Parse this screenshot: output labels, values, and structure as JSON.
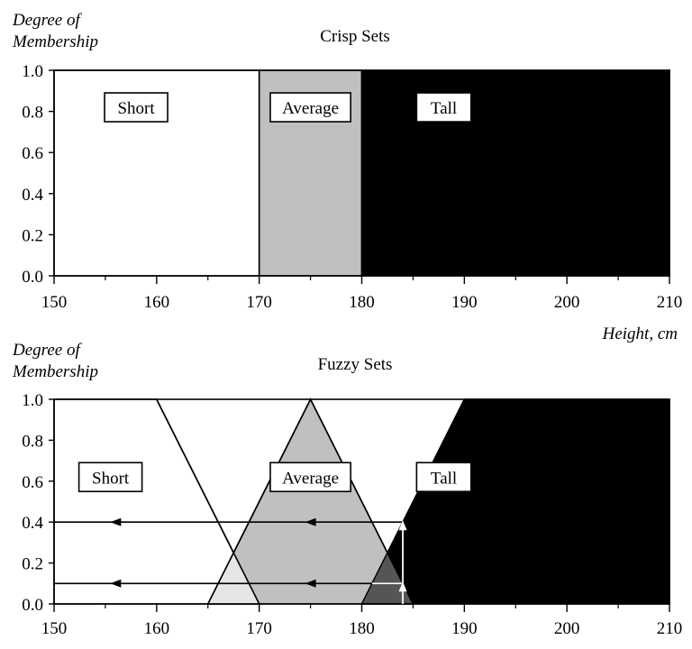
{
  "charts": [
    {
      "type": "area",
      "title": "Crisp Sets",
      "ylabel_line1": "Degree of",
      "ylabel_line2": "Membership",
      "xlabel": "Height, cm",
      "xlim": [
        150,
        210
      ],
      "ylim": [
        0,
        1
      ],
      "x_ticks": [
        "150",
        "160",
        "170",
        "180",
        "190",
        "200",
        "210"
      ],
      "y_ticks": [
        "0.0",
        "0.2",
        "0.4",
        "0.6",
        "0.8",
        "1.0"
      ],
      "series": [
        {
          "name": "Short",
          "color": "#ffffff",
          "points": [
            [
              150,
              0
            ],
            [
              150,
              1
            ],
            [
              170,
              1
            ],
            [
              170,
              0
            ]
          ]
        },
        {
          "name": "Average",
          "color": "#c0c0c0",
          "points": [
            [
              170,
              0
            ],
            [
              170,
              1
            ],
            [
              180,
              1
            ],
            [
              180,
              0
            ]
          ]
        },
        {
          "name": "Tall",
          "color": "#000000",
          "points": [
            [
              180,
              0
            ],
            [
              180,
              1
            ],
            [
              210,
              1
            ],
            [
              210,
              0
            ]
          ]
        }
      ],
      "labels": [
        {
          "text": "Short",
          "x": 158,
          "y": 0.82
        },
        {
          "text": "Average",
          "x": 175,
          "y": 0.82
        },
        {
          "text": "Tall",
          "x": 188,
          "y": 0.82
        }
      ]
    },
    {
      "type": "area",
      "title": "Fuzzy Sets",
      "ylabel_line1": "Degree of",
      "ylabel_line2": "Membership",
      "xlabel": "",
      "xlim": [
        150,
        210
      ],
      "ylim": [
        0,
        1
      ],
      "x_ticks": [
        "150",
        "160",
        "170",
        "180",
        "190",
        "200",
        "210"
      ],
      "y_ticks": [
        "0.0",
        "0.2",
        "0.4",
        "0.6",
        "0.8",
        "1.0"
      ],
      "series": [
        {
          "name": "Short",
          "color": "#ffffff",
          "points": [
            [
              150,
              0
            ],
            [
              150,
              1
            ],
            [
              160,
              1
            ],
            [
              170,
              0
            ]
          ]
        },
        {
          "name": "Average",
          "color": "#c0c0c0",
          "points": [
            [
              165,
              0
            ],
            [
              175,
              1
            ],
            [
              185,
              0
            ]
          ]
        },
        {
          "name": "Tall",
          "color": "#000000",
          "points": [
            [
              180,
              0
            ],
            [
              190,
              1
            ],
            [
              210,
              1
            ],
            [
              210,
              0
            ]
          ]
        }
      ],
      "overlaps": [
        {
          "color": "#e6e6e6",
          "points": [
            [
              165,
              0
            ],
            [
              167.5,
              0.25
            ],
            [
              170,
              0
            ]
          ]
        },
        {
          "color": "#555555",
          "points": [
            [
              180,
              0
            ],
            [
              182.5,
              0.25
            ],
            [
              185,
              0
            ]
          ]
        }
      ],
      "labels": [
        {
          "text": "Short",
          "x": 155.5,
          "y": 0.62
        },
        {
          "text": "Average",
          "x": 175,
          "y": 0.62
        },
        {
          "text": "Tall",
          "x": 188,
          "y": 0.62
        }
      ],
      "annotation": {
        "x": 184,
        "levels": [
          0.4,
          0.1
        ],
        "arrow_heads_x": [
          156,
          175
        ]
      }
    }
  ]
}
